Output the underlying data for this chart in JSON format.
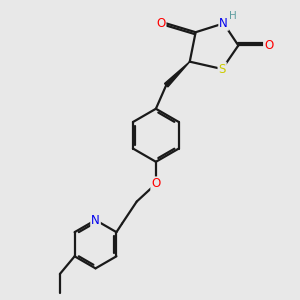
{
  "bg_color": "#e8e8e8",
  "bond_color": "#1a1a1a",
  "bond_width": 1.6,
  "atom_colors": {
    "O": "#ff0000",
    "N": "#0000ee",
    "S": "#cccc00",
    "H": "#5f9ea0",
    "C": "#1a1a1a"
  },
  "figsize": [
    3.0,
    3.0
  ],
  "dpi": 100
}
